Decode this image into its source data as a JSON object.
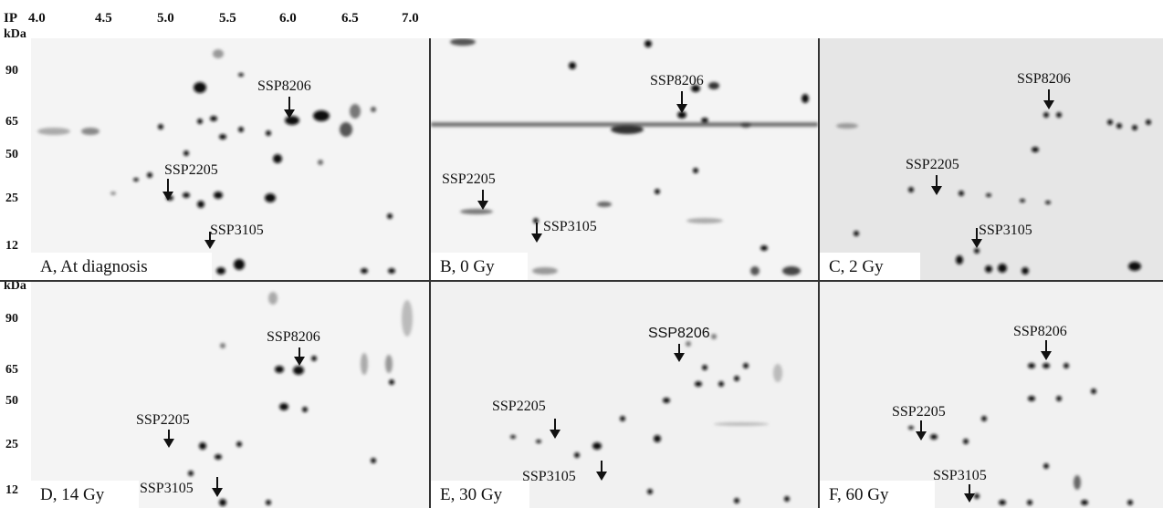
{
  "axis": {
    "ip_label": "IP",
    "ip_ticks": [
      "4.0",
      "4.5",
      "5.0",
      "5.5",
      "6.0",
      "6.5",
      "7.0"
    ],
    "kda_label": "kDa",
    "kda_ticks": [
      "90",
      "65",
      "50",
      "25",
      "12"
    ]
  },
  "panels": [
    {
      "caption": "A, At diagnosis",
      "labels": {
        "p8206": "SSP8206",
        "p2205": "SSP2205",
        "p3105": "SSP3105"
      }
    },
    {
      "caption": "B, 0 Gy",
      "labels": {
        "p8206": "SSP8206",
        "p2205": "SSP2205",
        "p3105": "SSP3105"
      }
    },
    {
      "caption": "C, 2 Gy",
      "labels": {
        "p8206": "SSP8206",
        "p2205": "SSP2205",
        "p3105": "SSP3105"
      }
    },
    {
      "caption": "D, 14 Gy",
      "labels": {
        "p8206": "SSP8206",
        "p2205": "SSP2205",
        "p3105": "SSP3105"
      }
    },
    {
      "caption": "E, 30 Gy",
      "labels": {
        "p8206": "SSP8206",
        "p2205": "SSP2205",
        "p3105": "SSP3105"
      }
    },
    {
      "caption": "F, 60 Gy",
      "labels": {
        "p8206": "SSP8206",
        "p2205": "SSP2205",
        "p3105": "SSP3105"
      }
    }
  ]
}
